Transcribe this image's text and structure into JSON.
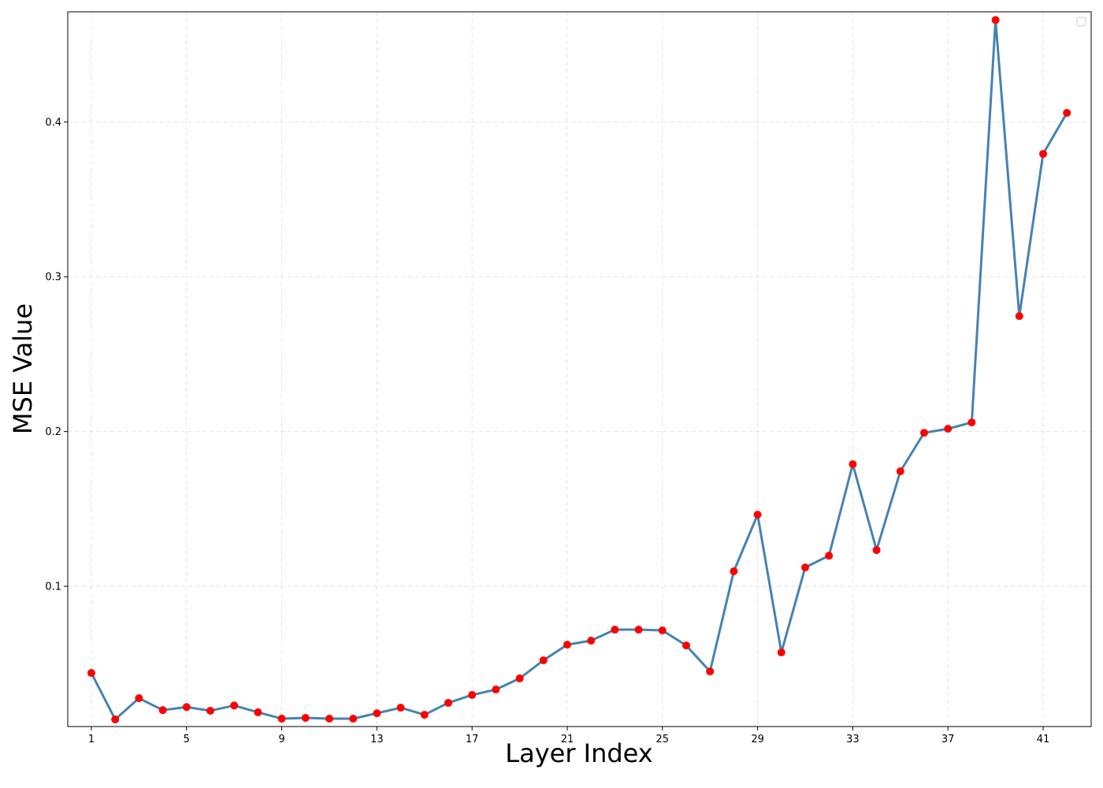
{
  "chart_data": {
    "type": "line",
    "x_label": "Layer Index",
    "y_label": "MSE Value",
    "x": [
      1,
      2,
      3,
      4,
      5,
      6,
      7,
      8,
      9,
      10,
      11,
      12,
      13,
      14,
      15,
      16,
      17,
      18,
      19,
      20,
      21,
      22,
      23,
      24,
      25,
      26,
      27,
      28,
      29,
      30,
      31,
      32,
      33,
      34,
      35,
      36,
      37,
      38,
      39,
      40,
      41,
      42
    ],
    "series": [
      {
        "color": "#4682b4",
        "marker_color": "#ff0000",
        "values": [
          0.044,
          0.014,
          0.0277,
          0.02,
          0.022,
          0.0196,
          0.023,
          0.0186,
          0.0145,
          0.015,
          0.0145,
          0.0145,
          0.018,
          0.0216,
          0.017,
          0.0247,
          0.0298,
          0.0333,
          0.0405,
          0.0522,
          0.0623,
          0.0649,
          0.072,
          0.072,
          0.0715,
          0.0618,
          0.045,
          0.1097,
          0.1463,
          0.0573,
          0.1122,
          0.1198,
          0.1789,
          0.1234,
          0.1743,
          0.1992,
          0.2018,
          0.2059,
          0.4659,
          0.2746,
          0.3794,
          0.4059
        ]
      }
    ],
    "xlim": [
      0.007,
      43.02
    ],
    "ylim": [
      0.0094,
      0.4712
    ],
    "xticks": [
      1,
      5,
      9,
      13,
      17,
      21,
      25,
      29,
      33,
      37,
      41
    ],
    "yticks": [
      0.1,
      0.2,
      0.3,
      0.4
    ],
    "grid": true
  }
}
